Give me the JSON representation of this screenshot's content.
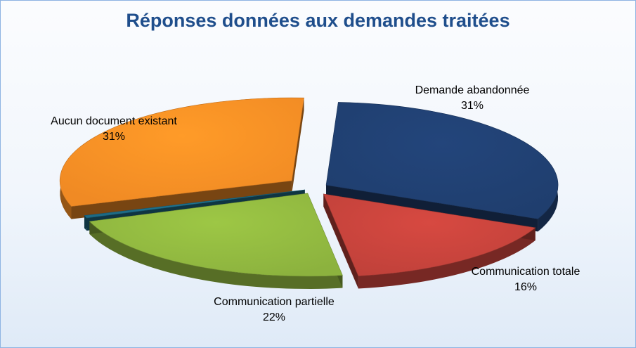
{
  "chart_data": {
    "type": "pie",
    "title": "Réponses données aux demandes traitées",
    "slices": [
      {
        "label": "Demande abandonnée",
        "value": 31,
        "display": "31%",
        "color": "#1f3e6e"
      },
      {
        "label": "Communication totale",
        "value": 16,
        "display": "16%",
        "color": "#c0413a"
      },
      {
        "label": "Communication partielle",
        "value": 22,
        "display": "22%",
        "color": "#8cb23e"
      },
      {
        "label": "",
        "value": 0.5,
        "display": "",
        "color": "#1d6a84"
      },
      {
        "label": "Aucun document existant",
        "value": 31,
        "display": "31%",
        "color": "#f08a24"
      }
    ],
    "legend": "none",
    "style": "3d-exploded"
  }
}
